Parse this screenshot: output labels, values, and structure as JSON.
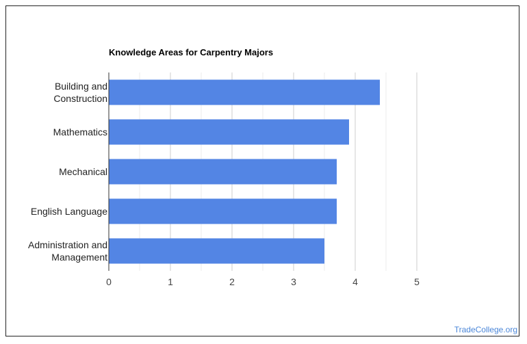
{
  "chart_data": {
    "type": "bar",
    "orientation": "horizontal",
    "title": "Knowledge Areas for Carpentry Majors",
    "categories": [
      [
        "Building and",
        "Construction"
      ],
      [
        "Mathematics"
      ],
      [
        "Mechanical"
      ],
      [
        "English Language"
      ],
      [
        "Administration and",
        "Management"
      ]
    ],
    "values": [
      4.4,
      3.9,
      3.7,
      3.7,
      3.5
    ],
    "xlim": [
      0,
      5
    ],
    "xticks": [
      0,
      1,
      2,
      3,
      4,
      5
    ],
    "grid": true,
    "bar_color": "#5385e4"
  },
  "watermark": "TradeCollege.org"
}
